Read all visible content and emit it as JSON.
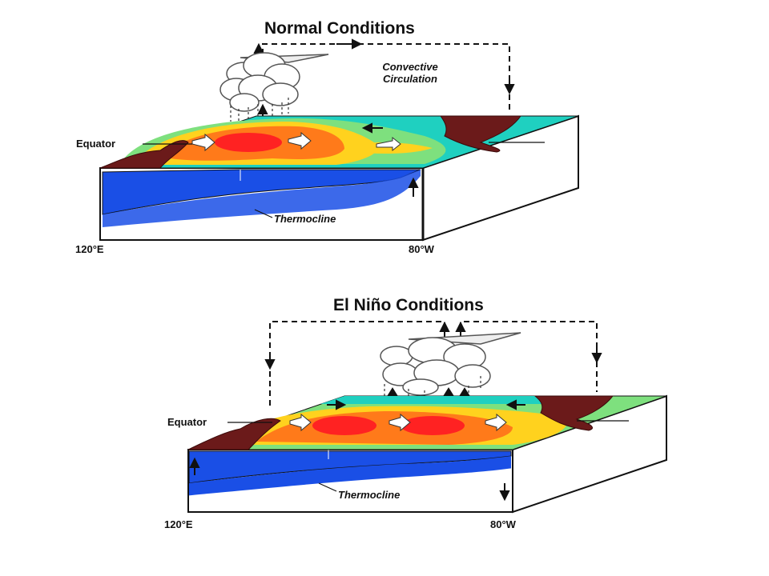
{
  "normal": {
    "title": "Normal Conditions",
    "circulation": "Convective Circulation",
    "equator": "Equator",
    "thermocline": "Thermocline",
    "lon_west": "120°E",
    "lon_east": "80°W"
  },
  "elnino": {
    "title": "El Niño Conditions",
    "equator": "Equator",
    "thermocline": "Thermocline",
    "lon_west": "120°E",
    "lon_east": "80°W"
  },
  "colors": {
    "land": "#6b1a1a",
    "warm_core": "#ff2222",
    "warm": "#ff7a1a",
    "mild": "#ffd21e",
    "cool": "#7ee07e",
    "cold": "#1fd0c0",
    "deep_water": "#1a4fe6",
    "box_edge": "#111111"
  },
  "icons": {
    "cloud": "cloud-icon",
    "arrow": "arrow-icon",
    "wind": "wind-arrow-icon"
  }
}
